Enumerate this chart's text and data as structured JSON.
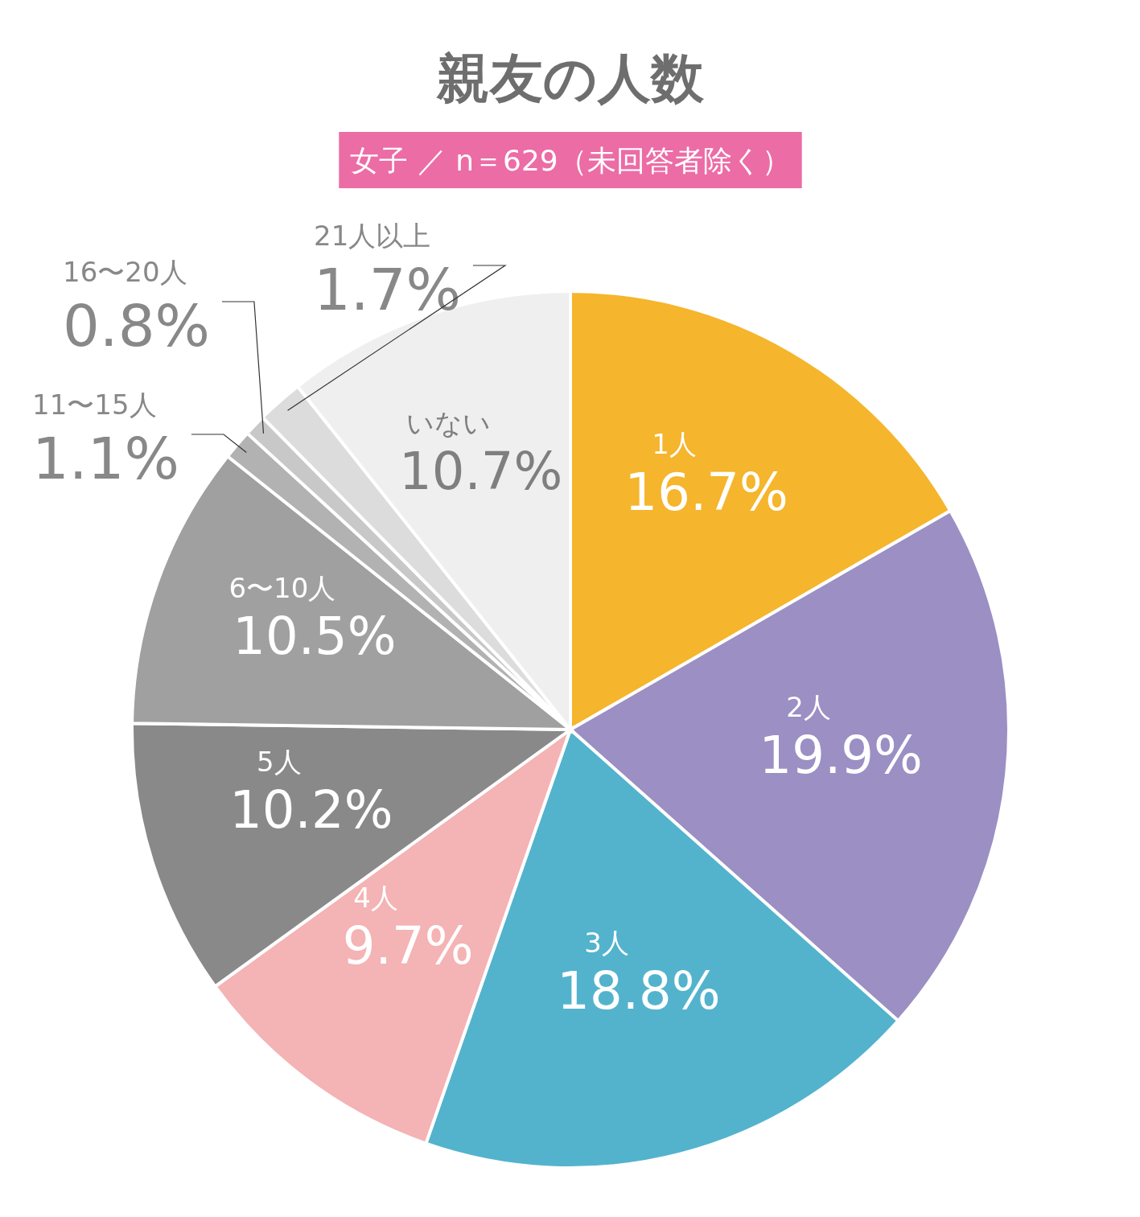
{
  "chart_data": {
    "type": "pie",
    "title": "親友の人数",
    "subtitle": "女子 ／ n＝629（未回答者除く）",
    "categories": [
      "1人",
      "2人",
      "3人",
      "4人",
      "5人",
      "6〜10人",
      "11〜15人",
      "16〜20人",
      "21人以上",
      "いない"
    ],
    "values": [
      16.7,
      19.9,
      18.8,
      9.7,
      10.2,
      10.5,
      1.1,
      0.8,
      1.7,
      10.7
    ],
    "value_labels": [
      "16.7%",
      "19.9%",
      "18.8%",
      "9.7%",
      "10.2%",
      "10.5%",
      "1.1%",
      "0.8%",
      "1.7%",
      "10.7%"
    ],
    "colors": [
      "#f5b52c",
      "#9b8fc4",
      "#53b3cd",
      "#f4b3b4",
      "#898989",
      "#a0a0a0",
      "#b2b2b2",
      "#c8c8c8",
      "#dcdcdc",
      "#efefef"
    ]
  }
}
